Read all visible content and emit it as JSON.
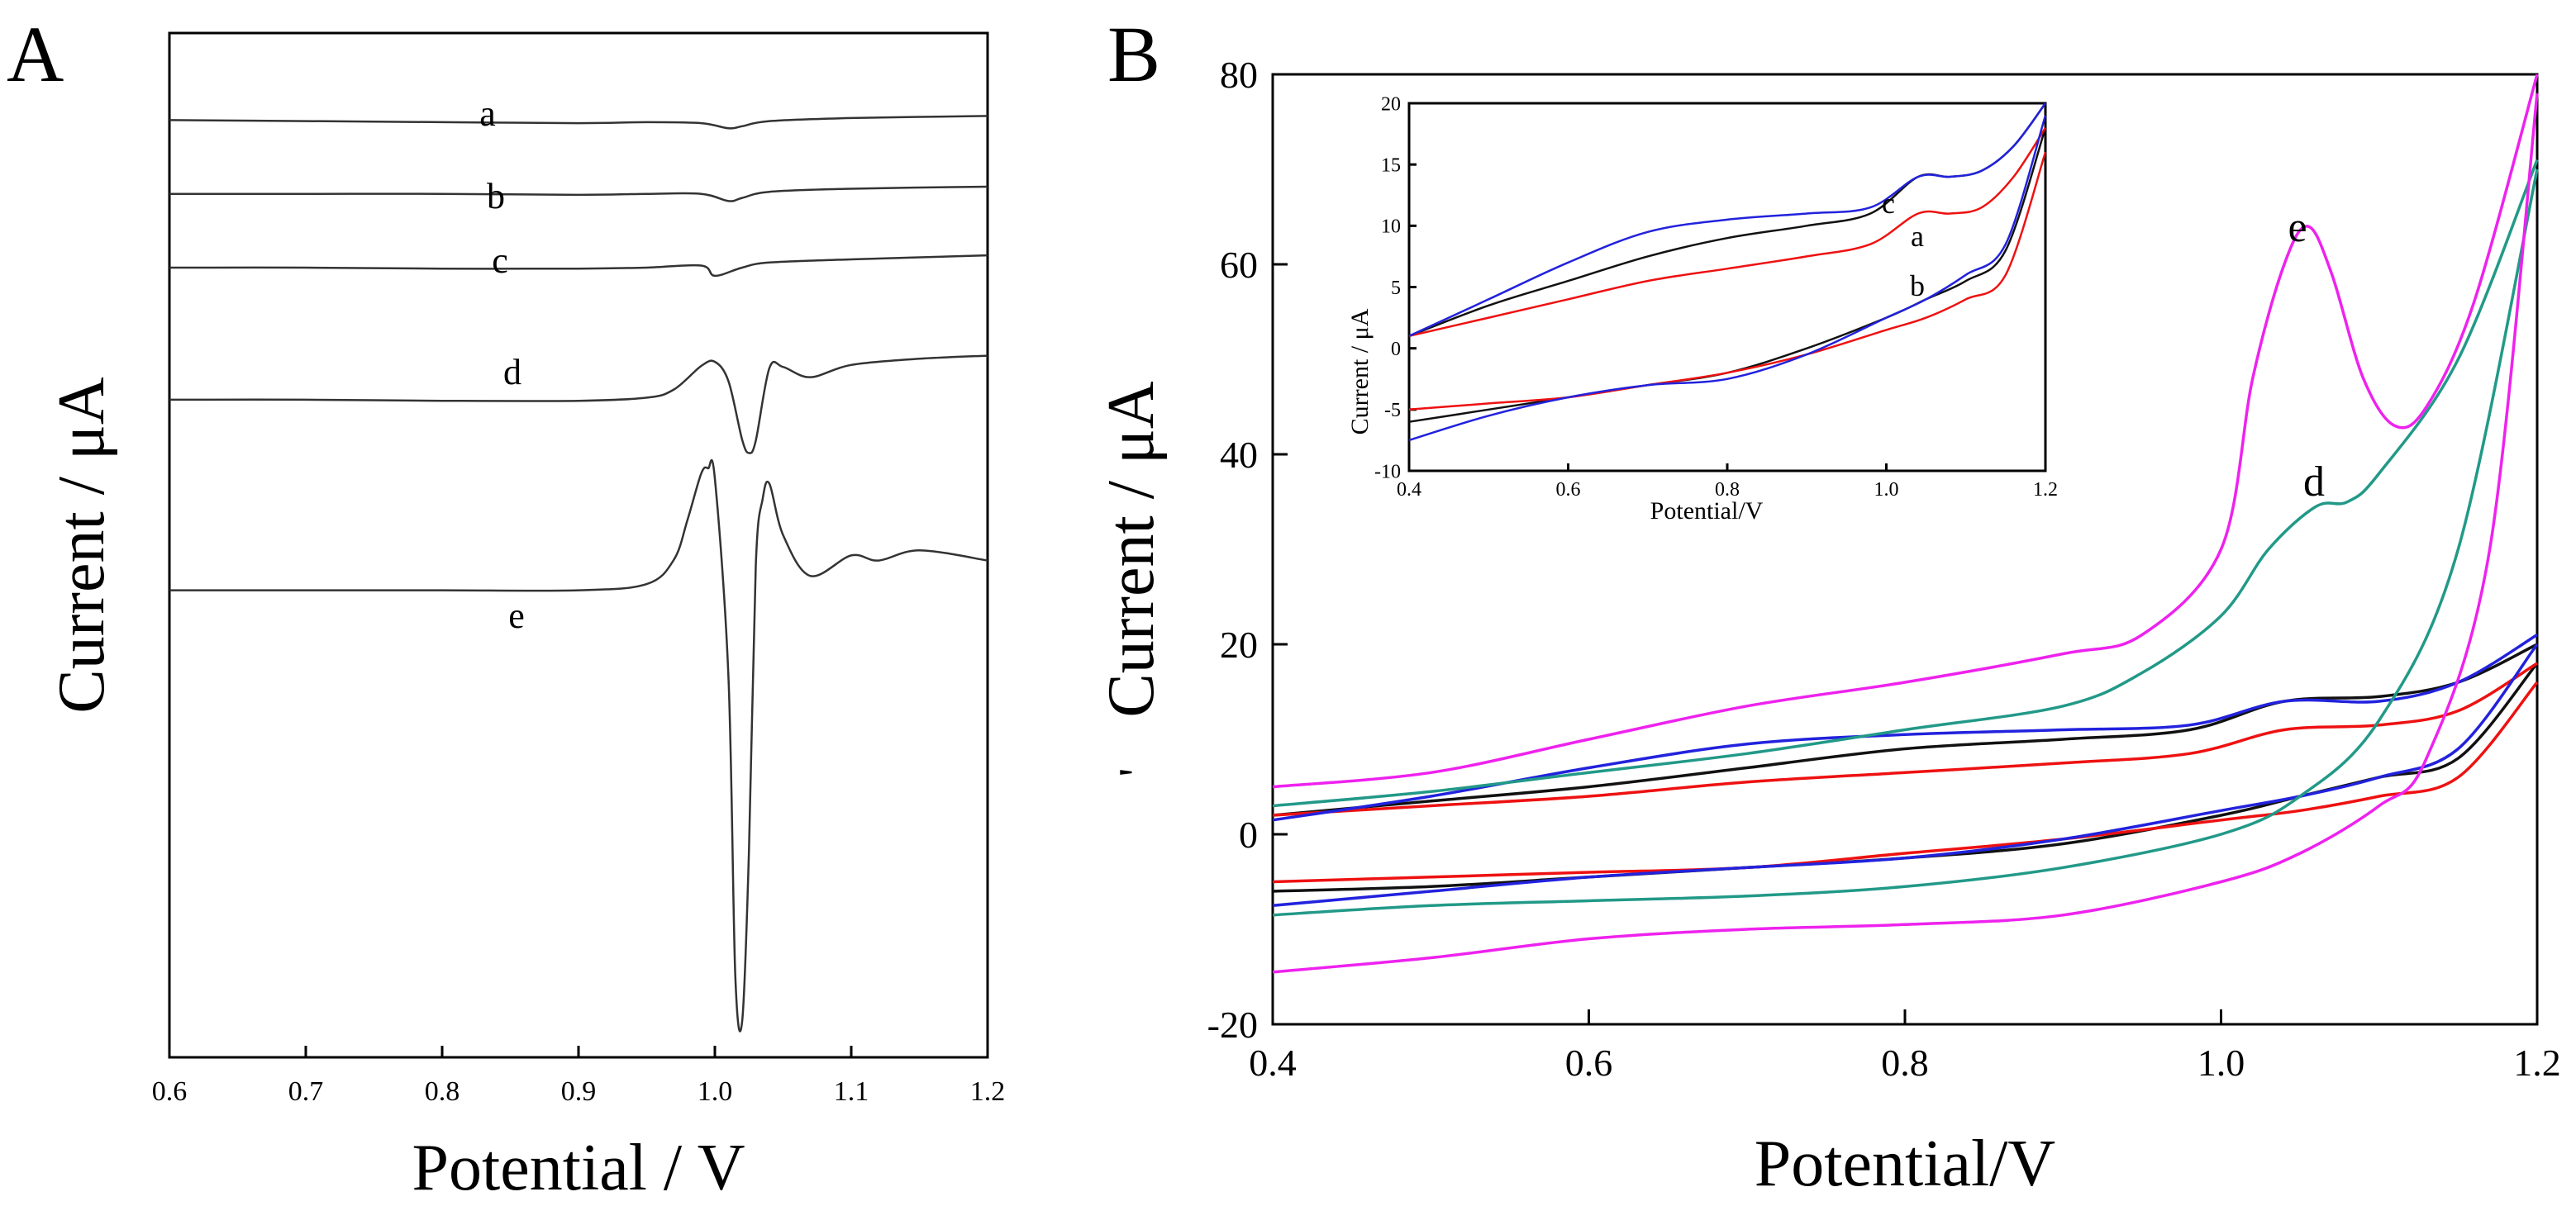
{
  "chart_data": [
    {
      "panel": "A",
      "type": "line",
      "panel_label": "A",
      "xlabel": "Potential / V",
      "ylabel": "Current / μA",
      "xlim": [
        0.6,
        1.2
      ],
      "xticks": [
        0.6,
        0.7,
        0.8,
        0.9,
        1.0,
        1.1,
        1.2
      ],
      "xtick_labels": [
        "0.6",
        "0.7",
        "0.8",
        "0.9",
        "1.0",
        "1.1",
        "1.2"
      ],
      "ylim": [
        0,
        100
      ],
      "y_ticks_shown": false,
      "series": [
        {
          "name": "a",
          "color": "#333333",
          "x": [
            0.6,
            0.7,
            0.8,
            0.9,
            0.95,
            0.99,
            1.01,
            1.02,
            1.04,
            1.1,
            1.2
          ],
          "y": [
            91.5,
            91.4,
            91.3,
            91.2,
            91.3,
            91.2,
            90.7,
            90.9,
            91.4,
            91.7,
            91.9
          ]
        },
        {
          "name": "b",
          "color": "#333333",
          "x": [
            0.6,
            0.7,
            0.8,
            0.9,
            0.95,
            0.99,
            1.01,
            1.02,
            1.04,
            1.1,
            1.2
          ],
          "y": [
            84.3,
            84.3,
            84.3,
            84.2,
            84.3,
            84.3,
            83.6,
            83.9,
            84.5,
            84.8,
            85.0
          ]
        },
        {
          "name": "c",
          "color": "#333333",
          "x": [
            0.6,
            0.7,
            0.8,
            0.9,
            0.95,
            0.99,
            1.0,
            1.02,
            1.04,
            1.1,
            1.2
          ],
          "y": [
            77.1,
            77.1,
            77.0,
            77.0,
            77.1,
            77.3,
            76.3,
            77.1,
            77.6,
            77.9,
            78.3
          ]
        },
        {
          "name": "d",
          "color": "#333333",
          "x": [
            0.6,
            0.7,
            0.8,
            0.9,
            0.95,
            0.97,
            0.99,
            1.0,
            1.01,
            1.02,
            1.025,
            1.03,
            1.04,
            1.05,
            1.07,
            1.1,
            1.15,
            1.2
          ],
          "y": [
            64.2,
            64.2,
            64.1,
            64.1,
            64.4,
            65.2,
            67.5,
            67.9,
            66.0,
            60.3,
            59.0,
            60.2,
            67.3,
            67.4,
            66.4,
            67.6,
            68.2,
            68.5
          ]
        },
        {
          "name": "e",
          "color": "#333333",
          "x": [
            0.6,
            0.7,
            0.8,
            0.9,
            0.95,
            0.97,
            0.98,
            0.99,
            0.995,
            1.0,
            1.01,
            1.015,
            1.02,
            1.025,
            1.03,
            1.035,
            1.04,
            1.05,
            1.07,
            1.1,
            1.12,
            1.15,
            1.2
          ],
          "y": [
            45.6,
            45.6,
            45.6,
            45.6,
            46.2,
            48.6,
            52.5,
            57.0,
            57.5,
            56.5,
            37.0,
            8.0,
            3.5,
            20.0,
            48.0,
            54.5,
            56.0,
            51.0,
            47.0,
            49.0,
            48.5,
            49.5,
            48.5
          ]
        }
      ],
      "annotations": [
        "a",
        "b",
        "c",
        "d",
        "e"
      ]
    },
    {
      "panel": "B",
      "type": "line",
      "panel_label": "B",
      "xlabel": "Potential/V",
      "ylabel": "Current / μA",
      "ylabel_prefix_mark": "'",
      "xlim": [
        0.4,
        1.2
      ],
      "ylim": [
        -20,
        80
      ],
      "xticks": [
        0.4,
        0.6,
        0.8,
        1.0,
        1.2
      ],
      "xtick_labels": [
        "0.4",
        "0.6",
        "0.8",
        "1.0",
        "1.2"
      ],
      "yticks": [
        -20,
        0,
        20,
        40,
        60,
        80
      ],
      "ytick_labels": [
        "-20",
        "0",
        "20",
        "40",
        "60",
        "80"
      ],
      "series": [
        {
          "name": "a",
          "color": "#111111",
          "forward": {
            "x": [
              0.4,
              0.5,
              0.6,
              0.7,
              0.8,
              0.9,
              0.98,
              1.04,
              1.1,
              1.15,
              1.2
            ],
            "y": [
              2,
              3.5,
              5,
              7,
              9,
              10,
              11,
              14,
              14.5,
              16,
              20
            ]
          },
          "reverse": {
            "x": [
              1.2,
              1.15,
              1.1,
              1.05,
              1.0,
              0.9,
              0.8,
              0.7,
              0.6,
              0.5,
              0.4
            ],
            "y": [
              18,
              8,
              6,
              4,
              2,
              -1,
              -2.5,
              -3.5,
              -4.5,
              -5.5,
              -6
            ]
          }
        },
        {
          "name": "b",
          "color": "#ee1111",
          "forward": {
            "x": [
              0.4,
              0.5,
              0.6,
              0.7,
              0.8,
              0.9,
              0.98,
              1.04,
              1.1,
              1.15,
              1.2
            ],
            "y": [
              2,
              3,
              4,
              5.5,
              6.5,
              7.5,
              8.5,
              11,
              11.5,
              13,
              18
            ]
          },
          "reverse": {
            "x": [
              1.2,
              1.15,
              1.1,
              1.05,
              1.0,
              0.9,
              0.8,
              0.7,
              0.6,
              0.5,
              0.4
            ],
            "y": [
              16,
              6,
              4,
              2.5,
              1.5,
              -0.5,
              -2,
              -3.5,
              -4,
              -4.5,
              -5
            ]
          }
        },
        {
          "name": "c",
          "color": "#2222dd",
          "forward": {
            "x": [
              0.4,
              0.5,
              0.6,
              0.7,
              0.8,
              0.9,
              0.98,
              1.04,
              1.1,
              1.15,
              1.2
            ],
            "y": [
              1.5,
              4,
              7,
              9.5,
              10.5,
              11,
              11.5,
              14,
              14,
              16,
              21
            ]
          },
          "reverse": {
            "x": [
              1.2,
              1.15,
              1.1,
              1.05,
              1.0,
              0.9,
              0.8,
              0.7,
              0.6,
              0.5,
              0.4
            ],
            "y": [
              20,
              9,
              6,
              4,
              2.5,
              -0.5,
              -2.5,
              -3.5,
              -4.5,
              -6,
              -7.5
            ]
          }
        },
        {
          "name": "d",
          "color": "#229988",
          "forward": {
            "x": [
              0.4,
              0.5,
              0.6,
              0.7,
              0.8,
              0.9,
              0.95,
              1.0,
              1.03,
              1.06,
              1.08,
              1.1,
              1.15,
              1.2
            ],
            "y": [
              3,
              4.5,
              6.5,
              8.5,
              11,
              13.5,
              17,
              23,
              30,
              34.5,
              35,
              38,
              50,
              71
            ]
          },
          "reverse": {
            "x": [
              1.2,
              1.15,
              1.1,
              1.05,
              1.0,
              0.9,
              0.8,
              0.7,
              0.6,
              0.5,
              0.4
            ],
            "y": [
              70,
              30,
              12,
              4,
              0,
              -3.5,
              -5.5,
              -6.5,
              -7,
              -7.5,
              -8.5
            ]
          }
        },
        {
          "name": "e",
          "color": "#ee22ee",
          "forward": {
            "x": [
              0.4,
              0.5,
              0.6,
              0.7,
              0.8,
              0.9,
              0.95,
              1.0,
              1.02,
              1.04,
              1.055,
              1.07,
              1.09,
              1.11,
              1.13,
              1.16,
              1.2
            ],
            "y": [
              5,
              6.5,
              10,
              13.5,
              16,
              19,
              21,
              30,
              48,
              60,
              64,
              59,
              48,
              43,
              45,
              56,
              80
            ]
          },
          "reverse": {
            "x": [
              1.2,
              1.17,
              1.13,
              1.1,
              1.05,
              1.0,
              0.9,
              0.8,
              0.7,
              0.6,
              0.5,
              0.4
            ],
            "y": [
              78,
              30,
              8,
              3,
              -2,
              -5,
              -8.5,
              -9.5,
              -10,
              -11,
              -13,
              -14.5
            ]
          }
        }
      ],
      "annotations": [
        "e",
        "d"
      ],
      "inset": {
        "xlabel": "Potential/V",
        "ylabel": "Current / μA",
        "xlim": [
          0.4,
          1.2
        ],
        "ylim": [
          -10,
          20
        ],
        "xticks": [
          0.4,
          0.6,
          0.8,
          1.0,
          1.2
        ],
        "xtick_labels": [
          "0.4",
          "0.6",
          "0.8",
          "1.0",
          "1.2"
        ],
        "yticks": [
          -10,
          -5,
          0,
          5,
          10,
          15,
          20
        ],
        "ytick_labels": [
          "-10",
          "-5",
          "0",
          "5",
          "10",
          "15",
          "20"
        ],
        "series": [
          {
            "name": "a",
            "color": "#111111",
            "forward": {
              "x": [
                0.4,
                0.5,
                0.6,
                0.7,
                0.8,
                0.9,
                0.98,
                1.04,
                1.08,
                1.12,
                1.16,
                1.2
              ],
              "y": [
                1,
                3.5,
                5.5,
                7.5,
                9,
                10,
                11,
                14,
                14,
                14.5,
                16.5,
                20
              ]
            },
            "reverse": {
              "x": [
                1.2,
                1.15,
                1.1,
                1.05,
                1.0,
                0.9,
                0.8,
                0.7,
                0.6,
                0.5,
                0.4
              ],
              "y": [
                18,
                8,
                5.5,
                4,
                2.5,
                0,
                -2,
                -3,
                -4,
                -5,
                -6
              ]
            }
          },
          {
            "name": "b",
            "color": "#ee1111",
            "forward": {
              "x": [
                0.4,
                0.5,
                0.6,
                0.7,
                0.8,
                0.9,
                0.98,
                1.04,
                1.08,
                1.12,
                1.16,
                1.2
              ],
              "y": [
                1,
                2.5,
                4,
                5.5,
                6.5,
                7.5,
                8.5,
                11,
                11,
                11.5,
                14,
                18
              ]
            },
            "reverse": {
              "x": [
                1.2,
                1.15,
                1.1,
                1.05,
                1.0,
                0.9,
                0.8,
                0.7,
                0.6,
                0.5,
                0.4
              ],
              "y": [
                16,
                6,
                4,
                2.5,
                1.5,
                -0.5,
                -2,
                -3,
                -4,
                -4.5,
                -5
              ]
            }
          },
          {
            "name": "c",
            "color": "#2222dd",
            "forward": {
              "x": [
                0.4,
                0.5,
                0.6,
                0.7,
                0.8,
                0.9,
                0.98,
                1.04,
                1.08,
                1.12,
                1.16,
                1.2
              ],
              "y": [
                1,
                4,
                7,
                9.5,
                10.5,
                11,
                11.5,
                14,
                14,
                14.5,
                16.5,
                20
              ]
            },
            "reverse": {
              "x": [
                1.2,
                1.15,
                1.1,
                1.05,
                1.0,
                0.9,
                0.8,
                0.7,
                0.6,
                0.5,
                0.4
              ],
              "y": [
                19,
                8.5,
                6,
                4,
                2.5,
                -0.5,
                -2.5,
                -3,
                -4,
                -5.5,
                -7.5
              ]
            }
          }
        ],
        "annotations": [
          "c",
          "a",
          "b"
        ]
      }
    }
  ]
}
